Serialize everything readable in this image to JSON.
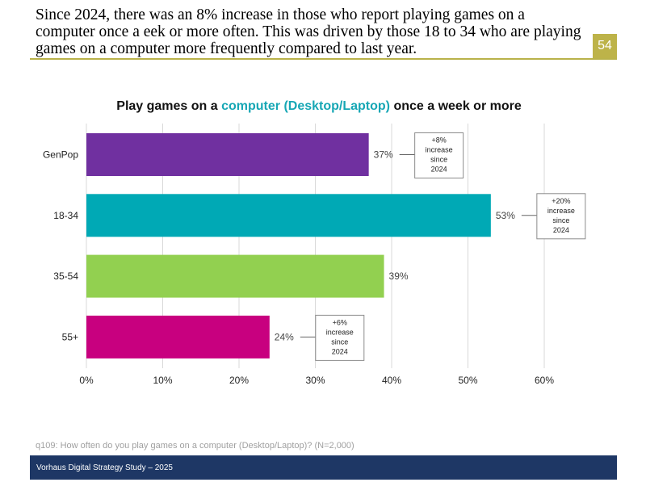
{
  "header": {
    "headline": "Since 2024, there was an 8% increase in those who report playing games on a computer once a eek or more often. This was driven by those 18 to 34 who are playing games on a computer more frequently compared to last year.",
    "page_number": "54"
  },
  "colors": {
    "accent_rule": "#b9b24a",
    "page_badge": "#bdb349",
    "title_highlight": "#17a7b5",
    "footer_bar": "#1e3765"
  },
  "chart_data": {
    "type": "bar",
    "orientation": "horizontal",
    "title_parts": {
      "before": "Play games on a ",
      "highlight": "computer (Desktop/Laptop)",
      "after": " once a week or more"
    },
    "categories": [
      "GenPop",
      "18-34",
      "35-54",
      "55+"
    ],
    "values": [
      37,
      53,
      39,
      24
    ],
    "value_labels": [
      "37%",
      "53%",
      "39%",
      "24%"
    ],
    "bar_colors": [
      "#7030a0",
      "#00a9b5",
      "#92d050",
      "#c8007f"
    ],
    "annotations": [
      {
        "category": "GenPop",
        "lines": [
          "+8%",
          "increase",
          "since",
          "2024"
        ]
      },
      {
        "category": "18-34",
        "lines": [
          "+20%",
          "increase",
          "since",
          "2024"
        ]
      },
      {
        "category": "55+",
        "lines": [
          "+6%",
          "increase",
          "since",
          "2024"
        ]
      }
    ],
    "xlim": [
      0,
      60
    ],
    "xticks": [
      0,
      10,
      20,
      30,
      40,
      50,
      60
    ],
    "xtick_labels": [
      "0%",
      "10%",
      "20%",
      "30%",
      "40%",
      "50%",
      "60%"
    ],
    "grid": true,
    "xlabel": "",
    "ylabel": ""
  },
  "footer": {
    "footnote": "q109: How often do you play games on a computer (Desktop/Laptop)? (N=2,000)",
    "study": "Vorhaus Digital Strategy Study – 2025"
  }
}
